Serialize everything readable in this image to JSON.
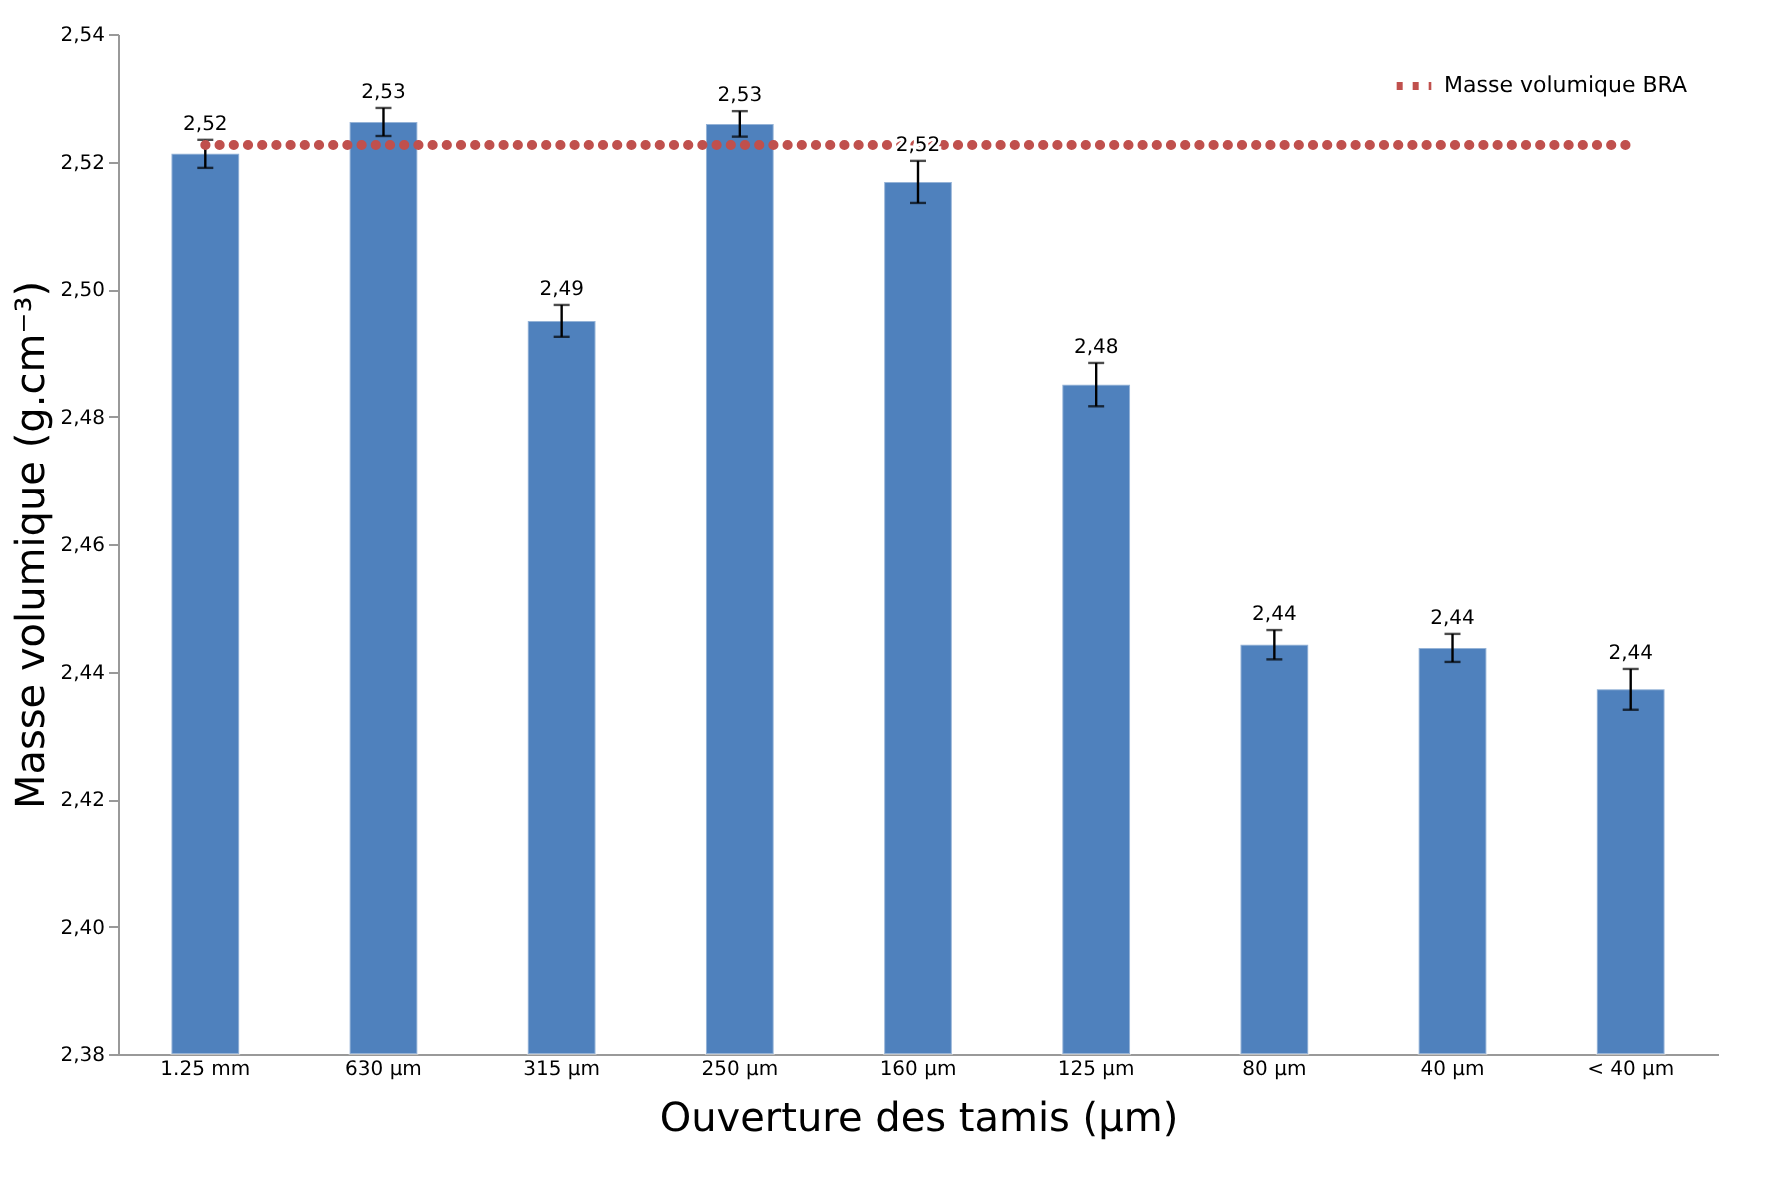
{
  "chart_data": {
    "type": "bar",
    "xlabel": "Ouverture des tamis (µm)",
    "ylabel": "Masse volumique (g.cm⁻³)",
    "categories": [
      "1.25 mm",
      "630 µm",
      "315 µm",
      "250 µm",
      "160 µm",
      "125 µm",
      "80 µm",
      "40 µm",
      "< 40 µm"
    ],
    "values": [
      2.5212,
      2.5262,
      2.495,
      2.5259,
      2.5168,
      2.485,
      2.4442,
      2.4437,
      2.4372
    ],
    "errors": [
      0.0022,
      0.0022,
      0.0025,
      0.002,
      0.0033,
      0.0034,
      0.0023,
      0.0022,
      0.0032
    ],
    "value_labels": [
      "2,52",
      "2,53",
      "2,49",
      "2,53",
      "2,52",
      "2,48",
      "2,44",
      "2,44",
      "2,44"
    ],
    "color": "#4f81bd",
    "ylim": [
      2.38,
      2.54
    ],
    "yticks": [
      {
        "value": 2.38,
        "label": "2,38"
      },
      {
        "value": 2.4,
        "label": "2,40"
      },
      {
        "value": 2.42,
        "label": "2,42"
      },
      {
        "value": 2.44,
        "label": "2,44"
      },
      {
        "value": 2.46,
        "label": "2,46"
      },
      {
        "value": 2.48,
        "label": "2,48"
      },
      {
        "value": 2.5,
        "label": "2,50"
      },
      {
        "value": 2.52,
        "label": "2,52"
      },
      {
        "value": 2.54,
        "label": "2,54"
      }
    ],
    "ref_lines": [
      {
        "axis": "y",
        "value": 2.5226,
        "label": "Masse volumique BRA",
        "color": "#c0504d",
        "line_style": "dotted"
      }
    ],
    "grid": false,
    "legend": "top right"
  }
}
